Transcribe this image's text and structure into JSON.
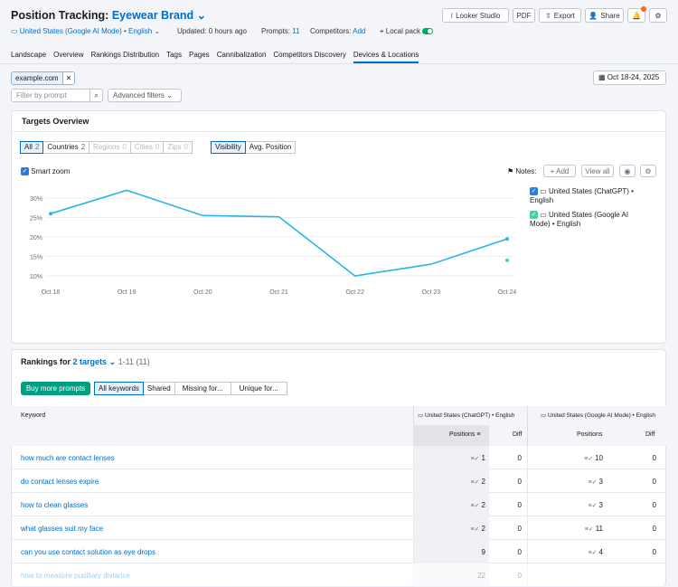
{
  "header": {
    "title_prefix": "Position Tracking:",
    "project": "Eyewear Brand",
    "buttons": {
      "looker": "Looker Studio",
      "pdf": "PDF",
      "export": "Export",
      "share": "Share"
    }
  },
  "subbar": {
    "location": "United States (Google AI Mode) • English",
    "updated": "Updated: 0 hours ago",
    "prompts_label": "Prompts:",
    "prompts_count": "11",
    "competitors_label": "Competitors:",
    "competitors_add": "Add",
    "local_pack": "Local pack"
  },
  "tabs": [
    "Landscape",
    "Overview",
    "Rankings Distribution",
    "Tags",
    "Pages",
    "Cannibalization",
    "Competitors Discovery",
    "Devices & Locations"
  ],
  "filters": {
    "domain_chip": "example.com",
    "prompt_placeholder": "Filter by prompt",
    "advanced": "Advanced filters",
    "date": "Oct 18-24, 2025"
  },
  "targets": {
    "title": "Targets Overview",
    "segments": [
      {
        "label": "All",
        "count": "2"
      },
      {
        "label": "Countries",
        "count": "2"
      },
      {
        "label": "Regions",
        "count": "0"
      },
      {
        "label": "Cities",
        "count": "0"
      },
      {
        "label": "Zips",
        "count": "0"
      }
    ],
    "metrics": [
      "Visibility",
      "Avg. Position"
    ],
    "smart_zoom": "Smart zoom",
    "notes_label": "Notes:",
    "notes_add": "+ Add",
    "notes_view": "View all",
    "legend": [
      "United States (ChatGPT) • English",
      "United States (Google AI Mode) • English"
    ]
  },
  "chart_data": {
    "type": "line",
    "x": [
      "Oct 18",
      "Oct 19",
      "Oct 20",
      "Oct 21",
      "Oct 22",
      "Oct 23",
      "Oct 24"
    ],
    "y_ticks": [
      "30%",
      "25%",
      "20%",
      "15%",
      "10%"
    ],
    "ylim": [
      10,
      30
    ],
    "series": [
      {
        "name": "United States (ChatGPT) • English",
        "color": "#29b5e8",
        "values": [
          26,
          32,
          25.5,
          25.2,
          10,
          13,
          19.5
        ]
      },
      {
        "name": "United States (Google AI Mode) • English",
        "color": "#3ed4b0",
        "values": [
          null,
          null,
          null,
          null,
          null,
          null,
          14
        ]
      }
    ]
  },
  "rankings": {
    "title_prefix": "Rankings for",
    "targets_link": "2 targets",
    "range": "1-11 (11)",
    "buy": "Buy more prompts",
    "filters": [
      "All keywords",
      "Shared",
      "Missing for...",
      "Unique for..."
    ],
    "col_keyword": "Keyword",
    "group1": "United States (ChatGPT) • English",
    "group2": "United States (Google AI Mode) • English",
    "col_positions": "Positions",
    "col_diff": "Diff",
    "rows": [
      {
        "kw": "how much are contact lenses",
        "p1": "1",
        "d1": "0",
        "p2": "10",
        "d2": "0"
      },
      {
        "kw": "do contact lenses expire",
        "p1": "2",
        "d1": "0",
        "p2": "3",
        "d2": "0"
      },
      {
        "kw": "how to clean glasses",
        "p1": "2",
        "d1": "0",
        "p2": "3",
        "d2": "0"
      },
      {
        "kw": "what glasses suit my face",
        "p1": "2",
        "d1": "0",
        "p2": "11",
        "d2": "0"
      },
      {
        "kw": "can you use contact solution as eye drops",
        "p1": "9",
        "d1": "0",
        "p2": "4",
        "d2": "0"
      },
      {
        "kw": "how to measure pupillary distance",
        "p1": "22",
        "d1": "0",
        "p2": "",
        "d2": ""
      }
    ]
  }
}
